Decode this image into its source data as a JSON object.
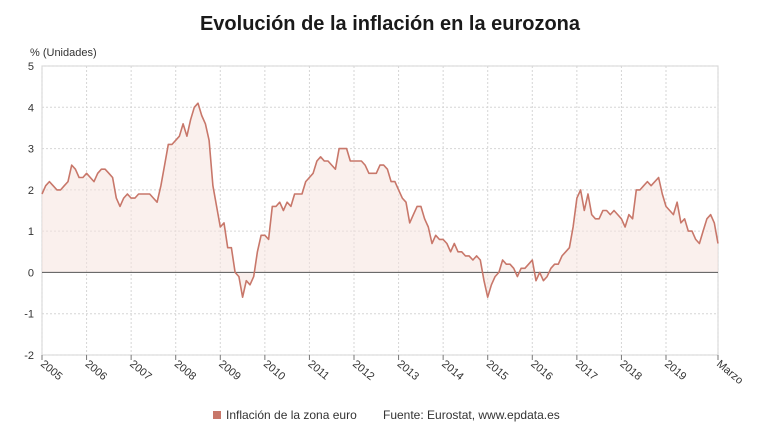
{
  "chart_data": {
    "type": "area",
    "title": "Evolución de la inflación en la eurozona",
    "ylabel": "% (Unidades)",
    "ylim": [
      -2,
      5
    ],
    "yticks": [
      "-2",
      "-1",
      "0",
      "1",
      "2",
      "3",
      "4",
      "5"
    ],
    "x_tick_labels": [
      "2005",
      "2006",
      "2007",
      "2008",
      "2009",
      "2010",
      "2011",
      "2012",
      "2013",
      "2014",
      "2015",
      "2016",
      "2017",
      "2018",
      "2019",
      "Marzo"
    ],
    "x_range": [
      "2005-01",
      "2020-03"
    ],
    "grid": "vertical dotted, horizontal dotted",
    "legend_position": "bottom-center",
    "series": [
      {
        "name": "Inflación de la zona euro",
        "color": "#c8776a",
        "x": [
          "2005-01",
          "2005-02",
          "2005-03",
          "2005-04",
          "2005-05",
          "2005-06",
          "2005-07",
          "2005-08",
          "2005-09",
          "2005-10",
          "2005-11",
          "2005-12",
          "2006-01",
          "2006-02",
          "2006-03",
          "2006-04",
          "2006-05",
          "2006-06",
          "2006-07",
          "2006-08",
          "2006-09",
          "2006-10",
          "2006-11",
          "2006-12",
          "2007-01",
          "2007-02",
          "2007-03",
          "2007-04",
          "2007-05",
          "2007-06",
          "2007-07",
          "2007-08",
          "2007-09",
          "2007-10",
          "2007-11",
          "2007-12",
          "2008-01",
          "2008-02",
          "2008-03",
          "2008-04",
          "2008-05",
          "2008-06",
          "2008-07",
          "2008-08",
          "2008-09",
          "2008-10",
          "2008-11",
          "2008-12",
          "2009-01",
          "2009-02",
          "2009-03",
          "2009-04",
          "2009-05",
          "2009-06",
          "2009-07",
          "2009-08",
          "2009-09",
          "2009-10",
          "2009-11",
          "2009-12",
          "2010-01",
          "2010-02",
          "2010-03",
          "2010-04",
          "2010-05",
          "2010-06",
          "2010-07",
          "2010-08",
          "2010-09",
          "2010-10",
          "2010-11",
          "2010-12",
          "2011-01",
          "2011-02",
          "2011-03",
          "2011-04",
          "2011-05",
          "2011-06",
          "2011-07",
          "2011-08",
          "2011-09",
          "2011-10",
          "2011-11",
          "2011-12",
          "2012-01",
          "2012-02",
          "2012-03",
          "2012-04",
          "2012-05",
          "2012-06",
          "2012-07",
          "2012-08",
          "2012-09",
          "2012-10",
          "2012-11",
          "2012-12",
          "2013-01",
          "2013-02",
          "2013-03",
          "2013-04",
          "2013-05",
          "2013-06",
          "2013-07",
          "2013-08",
          "2013-09",
          "2013-10",
          "2013-11",
          "2013-12",
          "2014-01",
          "2014-02",
          "2014-03",
          "2014-04",
          "2014-05",
          "2014-06",
          "2014-07",
          "2014-08",
          "2014-09",
          "2014-10",
          "2014-11",
          "2014-12",
          "2015-01",
          "2015-02",
          "2015-03",
          "2015-04",
          "2015-05",
          "2015-06",
          "2015-07",
          "2015-08",
          "2015-09",
          "2015-10",
          "2015-11",
          "2015-12",
          "2016-01",
          "2016-02",
          "2016-03",
          "2016-04",
          "2016-05",
          "2016-06",
          "2016-07",
          "2016-08",
          "2016-09",
          "2016-10",
          "2016-11",
          "2016-12",
          "2017-01",
          "2017-02",
          "2017-03",
          "2017-04",
          "2017-05",
          "2017-06",
          "2017-07",
          "2017-08",
          "2017-09",
          "2017-10",
          "2017-11",
          "2017-12",
          "2018-01",
          "2018-02",
          "2018-03",
          "2018-04",
          "2018-05",
          "2018-06",
          "2018-07",
          "2018-08",
          "2018-09",
          "2018-10",
          "2018-11",
          "2018-12",
          "2019-01",
          "2019-02",
          "2019-03",
          "2019-04",
          "2019-05",
          "2019-06",
          "2019-07",
          "2019-08",
          "2019-09",
          "2019-10",
          "2019-11",
          "2019-12",
          "2020-01",
          "2020-02",
          "2020-03"
        ],
        "y": [
          1.9,
          2.1,
          2.2,
          2.1,
          2.0,
          2.0,
          2.1,
          2.2,
          2.6,
          2.5,
          2.3,
          2.3,
          2.4,
          2.3,
          2.2,
          2.4,
          2.5,
          2.5,
          2.4,
          2.3,
          1.8,
          1.6,
          1.8,
          1.9,
          1.8,
          1.8,
          1.9,
          1.9,
          1.9,
          1.9,
          1.8,
          1.7,
          2.1,
          2.6,
          3.1,
          3.1,
          3.2,
          3.3,
          3.6,
          3.3,
          3.7,
          4.0,
          4.1,
          3.8,
          3.6,
          3.2,
          2.1,
          1.6,
          1.1,
          1.2,
          0.6,
          0.6,
          0.0,
          -0.1,
          -0.6,
          -0.2,
          -0.3,
          -0.1,
          0.5,
          0.9,
          0.9,
          0.8,
          1.6,
          1.6,
          1.7,
          1.5,
          1.7,
          1.6,
          1.9,
          1.9,
          1.9,
          2.2,
          2.3,
          2.4,
          2.7,
          2.8,
          2.7,
          2.7,
          2.6,
          2.5,
          3.0,
          3.0,
          3.0,
          2.7,
          2.7,
          2.7,
          2.7,
          2.6,
          2.4,
          2.4,
          2.4,
          2.6,
          2.6,
          2.5,
          2.2,
          2.2,
          2.0,
          1.8,
          1.7,
          1.2,
          1.4,
          1.6,
          1.6,
          1.3,
          1.1,
          0.7,
          0.9,
          0.8,
          0.8,
          0.7,
          0.5,
          0.7,
          0.5,
          0.5,
          0.4,
          0.4,
          0.3,
          0.4,
          0.3,
          -0.2,
          -0.6,
          -0.3,
          -0.1,
          0.0,
          0.3,
          0.2,
          0.2,
          0.1,
          -0.1,
          0.1,
          0.1,
          0.2,
          0.3,
          -0.2,
          0.0,
          -0.2,
          -0.1,
          0.1,
          0.2,
          0.2,
          0.4,
          0.5,
          0.6,
          1.1,
          1.8,
          2.0,
          1.5,
          1.9,
          1.4,
          1.3,
          1.3,
          1.5,
          1.5,
          1.4,
          1.5,
          1.4,
          1.3,
          1.1,
          1.4,
          1.3,
          2.0,
          2.0,
          2.1,
          2.2,
          2.1,
          2.2,
          2.3,
          1.9,
          1.6,
          1.5,
          1.4,
          1.7,
          1.2,
          1.3,
          1.0,
          1.0,
          0.8,
          0.7,
          1.0,
          1.3,
          1.4,
          1.2,
          0.7
        ]
      }
    ],
    "source_text": "Fuente: Eurostat, www.epdata.es"
  }
}
